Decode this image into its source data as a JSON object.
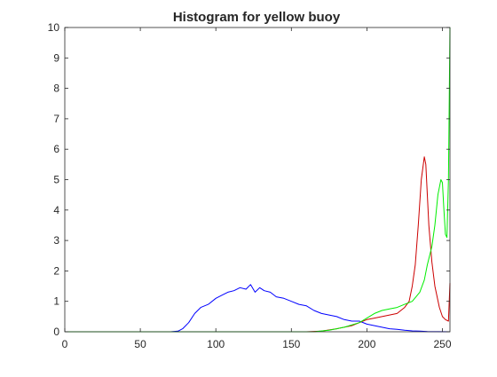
{
  "chart_data": {
    "type": "line",
    "title": "Histogram for yellow buoy",
    "xlabel": "",
    "ylabel": "",
    "xlim": [
      0,
      255
    ],
    "ylim": [
      0,
      10
    ],
    "xticks": [
      "0",
      "50",
      "100",
      "150",
      "200",
      "250"
    ],
    "xtick_values": [
      0,
      50,
      100,
      150,
      200,
      250
    ],
    "yticks": [
      "0",
      "1",
      "2",
      "3",
      "4",
      "5",
      "6",
      "7",
      "8",
      "9",
      "10"
    ],
    "ytick_values": [
      0,
      1,
      2,
      3,
      4,
      5,
      6,
      7,
      8,
      9,
      10
    ],
    "grid": false,
    "legend": "none",
    "colors": {
      "blue": "#0000ff",
      "red": "#cc0000",
      "green": "#00ee00",
      "axis": "#262626"
    },
    "series": [
      {
        "color": "blue",
        "x": [
          0,
          70,
          75,
          78,
          82,
          86,
          90,
          95,
          100,
          104,
          108,
          112,
          116,
          120,
          123,
          126,
          129,
          132,
          136,
          140,
          145,
          150,
          155,
          160,
          165,
          170,
          175,
          180,
          185,
          190,
          195,
          200,
          205,
          210,
          215,
          220,
          225,
          230,
          235,
          240,
          255
        ],
        "y": [
          0,
          0,
          0.02,
          0.1,
          0.3,
          0.6,
          0.8,
          0.9,
          1.1,
          1.2,
          1.3,
          1.35,
          1.45,
          1.4,
          1.55,
          1.3,
          1.45,
          1.35,
          1.3,
          1.15,
          1.1,
          1.0,
          0.9,
          0.85,
          0.7,
          0.6,
          0.55,
          0.5,
          0.4,
          0.35,
          0.35,
          0.25,
          0.2,
          0.15,
          0.1,
          0.08,
          0.05,
          0.03,
          0.02,
          0.01,
          0
        ]
      },
      {
        "color": "red",
        "x": [
          0,
          160,
          170,
          180,
          190,
          195,
          200,
          205,
          210,
          215,
          220,
          225,
          228,
          230,
          232,
          234,
          236,
          238,
          239,
          240,
          241,
          243,
          245,
          248,
          250,
          252,
          254,
          255
        ],
        "y": [
          0,
          0,
          0.02,
          0.1,
          0.2,
          0.3,
          0.4,
          0.45,
          0.5,
          0.55,
          0.6,
          0.8,
          1.0,
          1.5,
          2.2,
          3.5,
          5.0,
          5.75,
          5.5,
          4.5,
          3.5,
          2.3,
          1.5,
          0.8,
          0.5,
          0.4,
          0.35,
          1.6
        ]
      },
      {
        "color": "green",
        "x": [
          0,
          165,
          175,
          185,
          195,
          200,
          205,
          210,
          215,
          220,
          225,
          230,
          235,
          238,
          240,
          243,
          245,
          247,
          249,
          250,
          251,
          252,
          253,
          254,
          255
        ],
        "y": [
          0,
          0,
          0.05,
          0.15,
          0.3,
          0.45,
          0.6,
          0.7,
          0.75,
          0.8,
          0.9,
          1.0,
          1.3,
          1.7,
          2.2,
          2.8,
          3.5,
          4.5,
          5.0,
          4.9,
          4.0,
          3.2,
          3.1,
          5.0,
          10.0
        ]
      }
    ]
  }
}
